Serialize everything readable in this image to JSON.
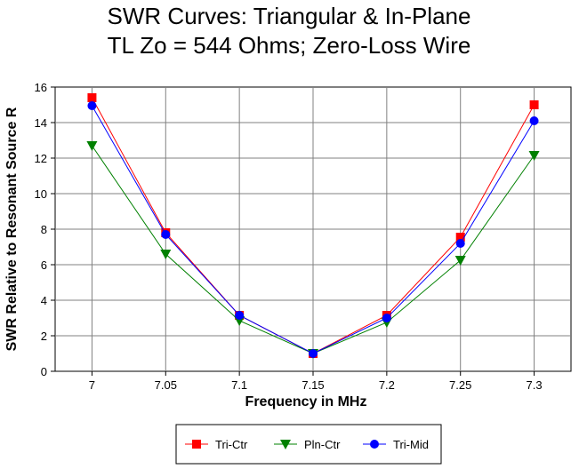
{
  "chart_data": {
    "type": "line",
    "title": [
      "SWR Curves:  Triangular & In-Plane",
      "TL Zo = 544 Ohms; Zero-Loss Wire"
    ],
    "xlabel": "Frequency in MHz",
    "ylabel": "SWR Relative to Resonant Source R",
    "x": [
      7,
      7.05,
      7.1,
      7.15,
      7.2,
      7.25,
      7.3
    ],
    "x_tick_labels": [
      "7",
      "7.05",
      "7.1",
      "7.15",
      "7.2",
      "7.25",
      "7.3"
    ],
    "y_ticks": [
      0,
      2,
      4,
      6,
      8,
      10,
      12,
      14,
      16
    ],
    "y_tick_labels": [
      "0",
      "2",
      "4",
      "6",
      "8",
      "10",
      "12",
      "14",
      "16"
    ],
    "ylim": [
      0,
      16
    ],
    "grid": true,
    "legend_position": "bottom",
    "series": [
      {
        "name": "Tri-Ctr",
        "color": "#ff0000",
        "marker": "square",
        "values": [
          15.4,
          7.8,
          3.15,
          1.0,
          3.15,
          7.55,
          15.0
        ]
      },
      {
        "name": "Pln-Ctr",
        "color": "#008000",
        "marker": "triangle-down",
        "values": [
          12.7,
          6.6,
          2.85,
          1.0,
          2.75,
          6.25,
          12.15
        ]
      },
      {
        "name": "Tri-Mid",
        "color": "#0000ff",
        "marker": "circle",
        "values": [
          14.95,
          7.7,
          3.15,
          1.0,
          3.0,
          7.2,
          14.1
        ]
      }
    ]
  }
}
